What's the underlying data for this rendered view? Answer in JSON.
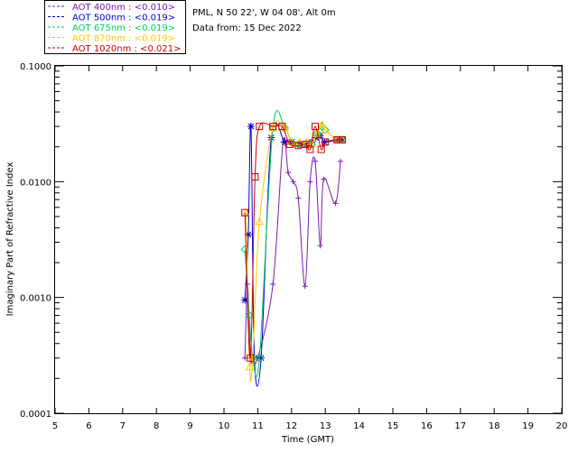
{
  "header": {
    "site": "PML, N 50 22', W 04 08', Alt 0m",
    "date": "Data from: 15 Dec 2022"
  },
  "legend": [
    {
      "label": "AOT  400nm : <0.010>",
      "color": "#7d1bb0"
    },
    {
      "label": "AOT  500nm : <0.019>",
      "color": "#0000cc"
    },
    {
      "label": "AOT  675nm : <0.019>",
      "color": "#00cc66"
    },
    {
      "label": "AOT  870nm : <0.019>",
      "color": "#ffcc00"
    },
    {
      "label": "AOT 1020nm : <0.021>",
      "color": "#cc0000"
    }
  ],
  "chart_data": {
    "type": "line",
    "title": "",
    "xlabel": "Time (GMT)",
    "ylabel": "Imaginary Part of Refractive Index",
    "xlim": [
      5,
      20
    ],
    "ylim": [
      0.0001,
      0.1
    ],
    "yscale": "log",
    "x_ticks": [
      "5",
      "6",
      "7",
      "8",
      "9",
      "10",
      "11",
      "12",
      "13",
      "14",
      "15",
      "16",
      "17",
      "18",
      "19",
      "20"
    ],
    "y_ticks": [
      "0.0001",
      "0.0010",
      "0.0100",
      "0.1000"
    ],
    "grid": false,
    "legend_position": "top-left, outside plot",
    "series": [
      {
        "name": "AOT  400nm : <0.010>",
        "color": "#7d1bb0",
        "marker": "plus",
        "x": [
          10.62,
          10.7,
          10.78,
          10.86,
          11.0,
          11.45,
          11.75,
          11.9,
          12.05,
          12.2,
          12.4,
          12.55,
          12.7,
          12.85,
          12.95,
          13.3,
          13.45
        ],
        "y": [
          0.0003,
          0.0013,
          0.0003,
          0.0003,
          0.0003,
          0.0013,
          0.022,
          0.012,
          0.01,
          0.0072,
          0.00125,
          0.01,
          0.015,
          0.0028,
          0.0105,
          0.0065,
          0.015
        ]
      },
      {
        "name": "AOT  500nm : <0.019>",
        "color": "#0000cc",
        "marker": "star",
        "x": [
          10.62,
          10.72,
          10.8,
          10.9,
          11.1,
          11.4,
          11.8,
          12.0,
          12.25,
          12.45,
          12.6,
          12.72,
          12.85,
          12.98,
          13.35,
          13.5
        ],
        "y": [
          0.00095,
          0.0035,
          0.03,
          0.0003,
          0.0003,
          0.024,
          0.022,
          0.022,
          0.021,
          0.021,
          0.022,
          0.024,
          0.025,
          0.022,
          0.023,
          0.023
        ]
      },
      {
        "name": "AOT  675nm : <0.019>",
        "color": "#00cc66",
        "marker": "diamond",
        "x": [
          10.62,
          10.75,
          10.85,
          11.05,
          11.45,
          11.8,
          12.0,
          12.2,
          12.45,
          12.6,
          12.75,
          12.9,
          13.0,
          13.35,
          13.5
        ],
        "y": [
          0.0026,
          0.0007,
          0.0003,
          0.0003,
          0.029,
          0.029,
          0.022,
          0.021,
          0.021,
          0.021,
          0.026,
          0.03,
          0.028,
          0.023,
          0.023
        ]
      },
      {
        "name": "AOT  870nm : <0.019>",
        "color": "#ffcc00",
        "marker": "triangle",
        "x": [
          10.65,
          10.76,
          10.85,
          11.05,
          11.45,
          11.8,
          12.0,
          12.25,
          12.45,
          12.6,
          12.75,
          12.9,
          13.0,
          13.35,
          13.5
        ],
        "y": [
          0.0054,
          0.00025,
          0.0003,
          0.0045,
          0.029,
          0.029,
          0.022,
          0.022,
          0.022,
          0.021,
          0.026,
          0.031,
          0.028,
          0.023,
          0.023
        ]
      },
      {
        "name": "AOT 1020nm : <0.021>",
        "color": "#cc0000",
        "marker": "square",
        "x": [
          10.62,
          10.78,
          10.92,
          11.05,
          11.45,
          11.72,
          11.95,
          12.2,
          12.42,
          12.55,
          12.7,
          12.88,
          13.0,
          13.35,
          13.5
        ],
        "y": [
          0.0054,
          0.0003,
          0.011,
          0.03,
          0.03,
          0.03,
          0.021,
          0.0205,
          0.021,
          0.019,
          0.03,
          0.019,
          0.022,
          0.023,
          0.023
        ]
      }
    ]
  }
}
